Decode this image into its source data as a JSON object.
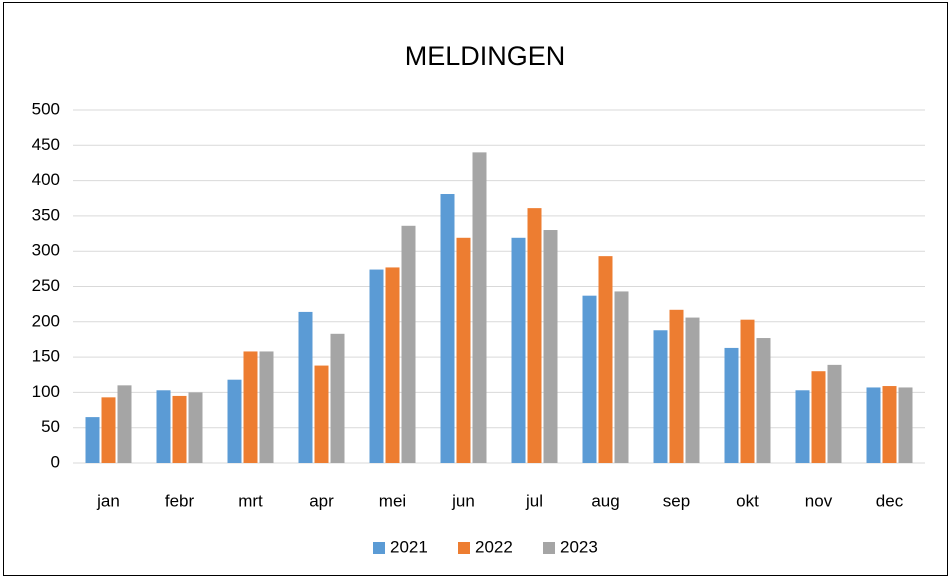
{
  "chart_data": {
    "type": "bar",
    "title": "MELDINGEN",
    "categories": [
      "jan",
      "febr",
      "mrt",
      "apr",
      "mei",
      "jun",
      "jul",
      "aug",
      "sep",
      "okt",
      "nov",
      "dec"
    ],
    "series": [
      {
        "name": "2021",
        "color": "#5b9bd5",
        "values": [
          65,
          103,
          118,
          214,
          274,
          381,
          319,
          237,
          188,
          163,
          103,
          107
        ]
      },
      {
        "name": "2022",
        "color": "#ed7d31",
        "values": [
          93,
          95,
          158,
          138,
          277,
          319,
          361,
          293,
          217,
          203,
          130,
          109
        ]
      },
      {
        "name": "2023",
        "color": "#a5a5a5",
        "values": [
          110,
          100,
          158,
          183,
          336,
          440,
          330,
          243,
          206,
          177,
          139,
          107
        ]
      }
    ],
    "ylim": [
      0,
      500
    ],
    "yticks": [
      0,
      50,
      100,
      150,
      200,
      250,
      300,
      350,
      400,
      450,
      500
    ],
    "grid": true,
    "legend": "bottom"
  }
}
